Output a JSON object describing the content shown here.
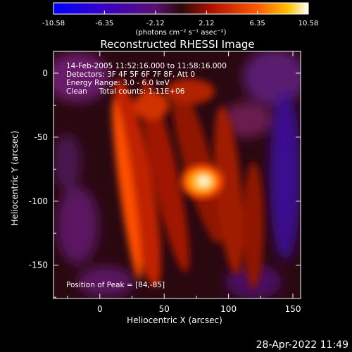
{
  "chart_data": {
    "type": "heatmap",
    "title": "Reconstructed RHESSI Image",
    "xlabel": "Heliocentric X (arcsec)",
    "ylabel": "Heliocentric Y (arcsec)",
    "xlim": [
      -36,
      156
    ],
    "ylim": [
      -176,
      17
    ],
    "x_ticks": [
      0,
      50,
      100,
      150
    ],
    "y_ticks": [
      0,
      -50,
      -100,
      -150
    ],
    "colorbar": {
      "range": [
        -10.58,
        10.58
      ],
      "tick_labels": [
        "-10.58",
        "-6.35",
        "-2.12",
        "2.12",
        "6.35",
        "10.58"
      ],
      "unit_label": "(photons cm⁻² s⁻¹ asec⁻²)"
    },
    "annotations": [
      "14-Feb-2005 11:52:16.000 to 11:58:16.000",
      "Detectors: 3F 4F 5F 6F 7F 8F, Att 0",
      "Energy Range: 3.0 - 6.0 keV",
      "Clean     Total counts: 1.11E+06"
    ],
    "peak_label": "Position of Peak = [84,-85]",
    "peak": [
      84,
      -85
    ],
    "peak_value": 10.58
  },
  "footer_date": "28-Apr-2022 11:49"
}
